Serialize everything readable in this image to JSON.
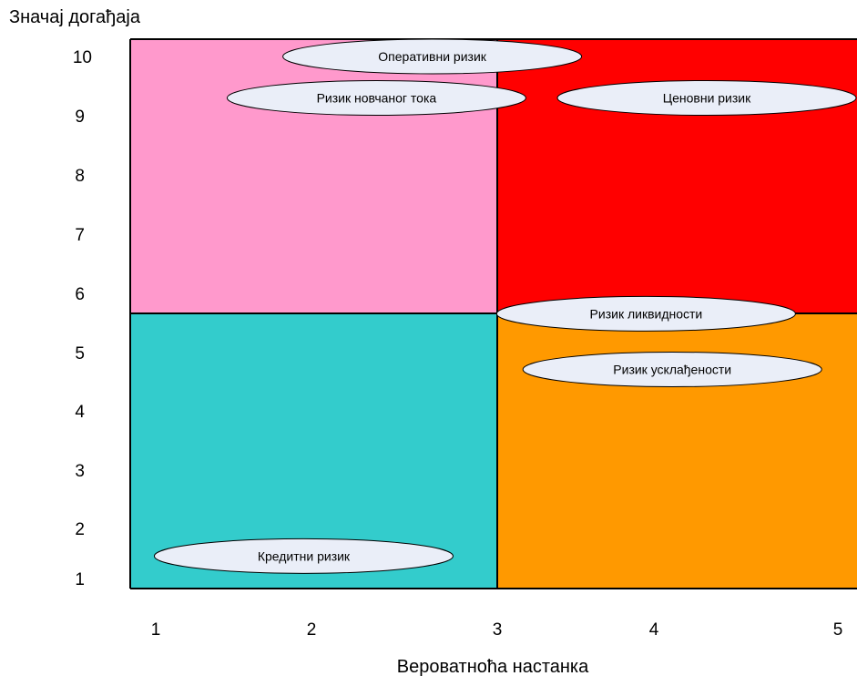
{
  "chart_data": {
    "type": "scatter",
    "title": "",
    "ylabel": "Значај догађаја",
    "xlabel": "Вероватноћа настанка",
    "y_ticks": [
      "10",
      "9",
      "8",
      "7",
      "6",
      "5",
      "4",
      "3",
      "2",
      "1"
    ],
    "x_ticks": [
      "1",
      "2",
      "3",
      "4",
      "5"
    ],
    "quadrants": [
      {
        "position": "top-left",
        "color": "#ff99cc"
      },
      {
        "position": "top-right",
        "color": "#ff0000"
      },
      {
        "position": "bottom-left",
        "color": "#33cccc"
      },
      {
        "position": "bottom-right",
        "color": "#ff9900"
      }
    ],
    "points": [
      {
        "name": "Оперативни ризик",
        "x": 2.65,
        "y": 10.0
      },
      {
        "name": "Ризик новчаног тока",
        "x": 2.35,
        "y": 9.3
      },
      {
        "name": "Ценовни ризик",
        "x": 4.35,
        "y": 9.3
      },
      {
        "name": "Ризик ликвидности",
        "x": 3.95,
        "y": 5.65
      },
      {
        "name": "Ризик усклађености",
        "x": 4.1,
        "y": 4.7
      },
      {
        "name": "Кредитни ризик",
        "x": 1.95,
        "y": 1.45
      }
    ]
  }
}
